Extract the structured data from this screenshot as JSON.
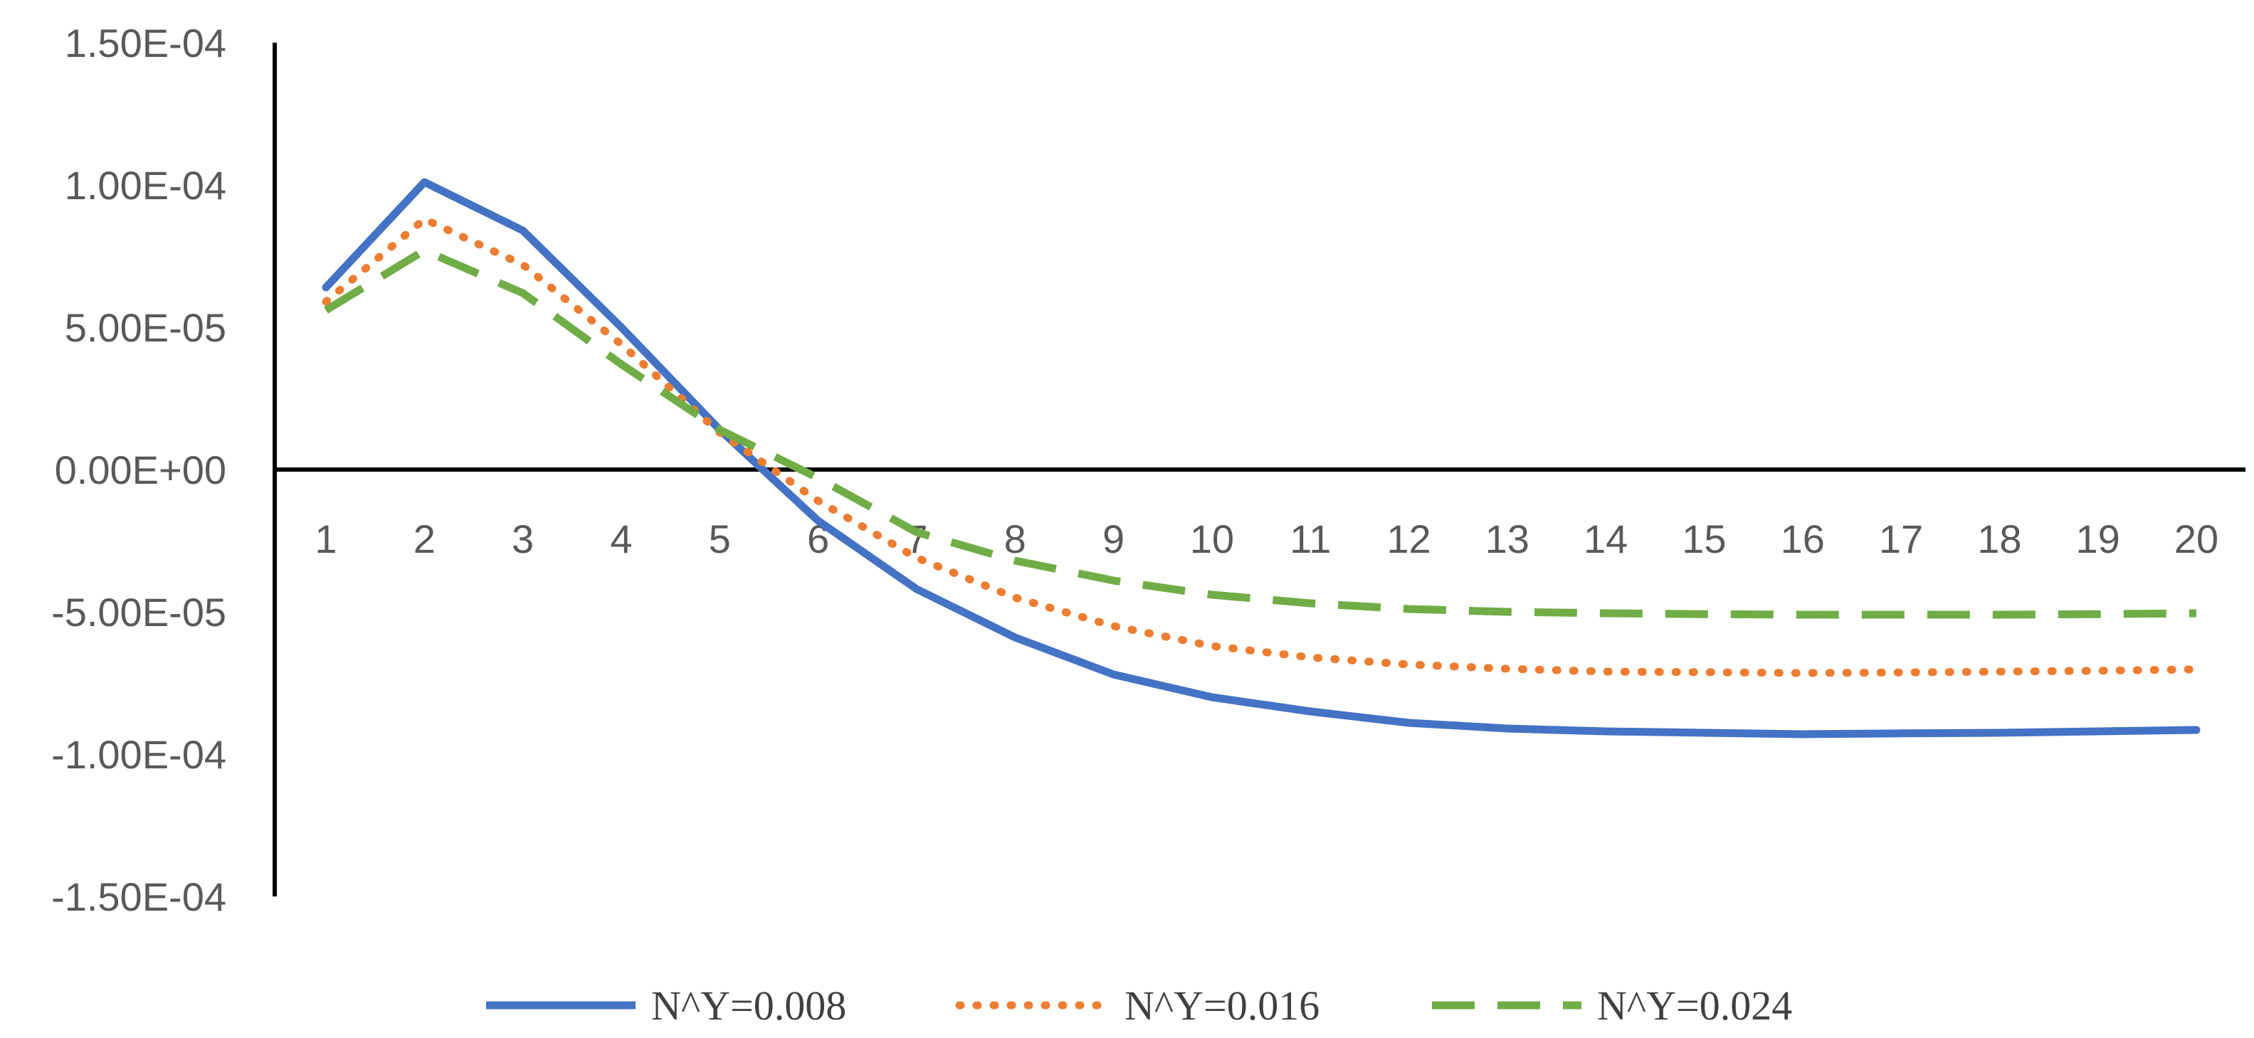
{
  "chart_data": {
    "type": "line",
    "title": "",
    "xlabel": "",
    "ylabel": "",
    "x": [
      1,
      2,
      3,
      4,
      5,
      6,
      7,
      8,
      9,
      10,
      11,
      12,
      13,
      14,
      15,
      16,
      17,
      18,
      19,
      20
    ],
    "x_tick_labels": [
      "1",
      "2",
      "3",
      "4",
      "5",
      "6",
      "7",
      "8",
      "9",
      "10",
      "11",
      "12",
      "13",
      "14",
      "15",
      "16",
      "17",
      "18",
      "19",
      "20"
    ],
    "ylim": [
      -0.00015,
      0.00015
    ],
    "y_ticks": [
      0.00015,
      0.0001,
      5e-05,
      0,
      -5e-05,
      -0.0001,
      -0.00015
    ],
    "y_tick_labels": [
      "1.50E-04",
      "1.00E-04",
      "5.00E-05",
      "0.00E+00",
      "-5.00E-05",
      "-1.00E-04",
      "-1.50E-04"
    ],
    "grid": false,
    "legend_position": "bottom",
    "series": [
      {
        "name": "N^Y=0.008",
        "color": "#4472C4",
        "dash": "solid",
        "values": [
          6.4e-05,
          0.000101,
          8.4e-05,
          5e-05,
          1.4e-05,
          -1.8e-05,
          -4.2e-05,
          -5.9e-05,
          -7.2e-05,
          -8e-05,
          -8.5e-05,
          -8.9e-05,
          -9.1e-05,
          -9.2e-05,
          -9.25e-05,
          -9.3e-05,
          -9.27e-05,
          -9.25e-05,
          -9.2e-05,
          -9.15e-05
        ]
      },
      {
        "name": "N^Y=0.016",
        "color": "#ED7D31",
        "dash": "dotted",
        "values": [
          5.9e-05,
          8.8e-05,
          7.2e-05,
          4.4e-05,
          1.3e-05,
          -1.1e-05,
          -3.1e-05,
          -4.5e-05,
          -5.5e-05,
          -6.2e-05,
          -6.6e-05,
          -6.85e-05,
          -7e-05,
          -7.1e-05,
          -7.12e-05,
          -7.15e-05,
          -7.13e-05,
          -7.1e-05,
          -7.07e-05,
          -7.02e-05
        ]
      },
      {
        "name": "N^Y=0.024",
        "color": "#70AD47",
        "dash": "dashed",
        "values": [
          5.6e-05,
          7.7e-05,
          6.2e-05,
          3.7e-05,
          1.4e-05,
          -3e-06,
          -2.2e-05,
          -3.2e-05,
          -3.9e-05,
          -4.4e-05,
          -4.7e-05,
          -4.9e-05,
          -5e-05,
          -5.05e-05,
          -5.08e-05,
          -5.1e-05,
          -5.1e-05,
          -5.1e-05,
          -5.08e-05,
          -5.05e-05
        ]
      }
    ]
  }
}
